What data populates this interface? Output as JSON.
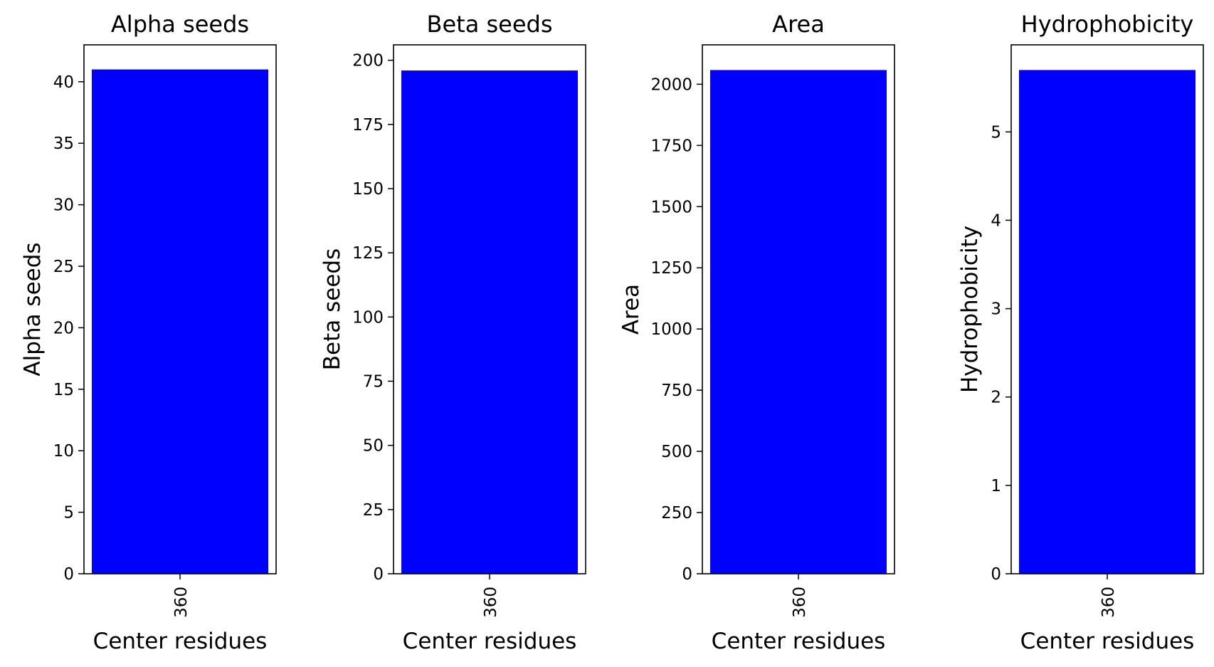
{
  "chart_data": [
    {
      "type": "bar",
      "title": "Alpha seeds",
      "xlabel": "Center residues",
      "ylabel": "Alpha seeds",
      "categories": [
        "360"
      ],
      "values": [
        41
      ],
      "ylim": [
        0,
        43
      ],
      "yticks": [
        0,
        5,
        10,
        15,
        20,
        25,
        30,
        35,
        40
      ],
      "ytick_labels": [
        "0",
        "5",
        "10",
        "15",
        "20",
        "25",
        "30",
        "35",
        "40"
      ],
      "bar_color": "#0000ff",
      "grid": false
    },
    {
      "type": "bar",
      "title": "Beta seeds",
      "xlabel": "Center residues",
      "ylabel": "Beta seeds",
      "categories": [
        "360"
      ],
      "values": [
        196
      ],
      "ylim": [
        0,
        206
      ],
      "yticks": [
        0,
        25,
        50,
        75,
        100,
        125,
        150,
        175,
        200
      ],
      "ytick_labels": [
        "0",
        "25",
        "50",
        "75",
        "100",
        "125",
        "150",
        "175",
        "200"
      ],
      "bar_color": "#0000ff",
      "grid": false
    },
    {
      "type": "bar",
      "title": "Area",
      "xlabel": "Center residues",
      "ylabel": "Area",
      "categories": [
        "360"
      ],
      "values": [
        2058
      ],
      "ylim": [
        0,
        2161
      ],
      "yticks": [
        0,
        250,
        500,
        750,
        1000,
        1250,
        1500,
        1750,
        2000
      ],
      "ytick_labels": [
        "0",
        "250",
        "500",
        "750",
        "1000",
        "1250",
        "1500",
        "1750",
        "2000"
      ],
      "bar_color": "#0000ff",
      "grid": false
    },
    {
      "type": "bar",
      "title": "Hydrophobicity",
      "xlabel": "Center residues",
      "ylabel": "Hydrophobicity",
      "categories": [
        "360"
      ],
      "values": [
        5.7
      ],
      "ylim": [
        0,
        5.985
      ],
      "yticks": [
        0,
        1,
        2,
        3,
        4,
        5
      ],
      "ytick_labels": [
        "0",
        "1",
        "2",
        "3",
        "4",
        "5"
      ],
      "bar_color": "#0000ff",
      "grid": false
    }
  ]
}
